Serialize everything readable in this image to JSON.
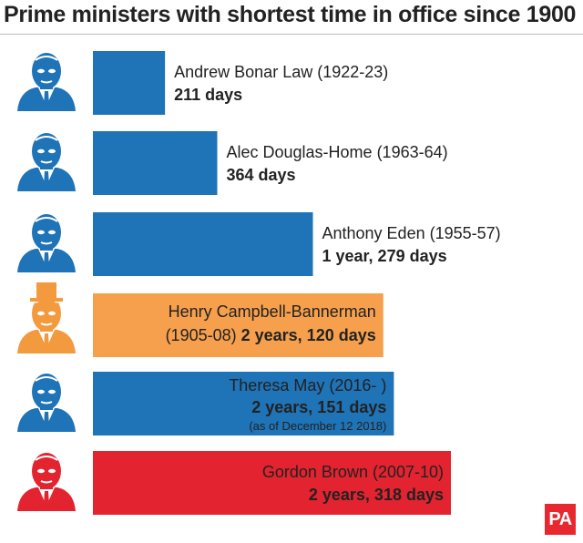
{
  "title": "Prime ministers with shortest time in office since 1900",
  "logo_text": "PA",
  "colors": {
    "blue": "#1f73b7",
    "orange": "#f6a04d",
    "red": "#e3232f",
    "portrait": "#1f73b7",
    "portrait_orange": "#f39a3f",
    "portrait_red": "#e3232f"
  },
  "chart_data": {
    "type": "bar",
    "orientation": "horizontal",
    "unit": "days",
    "categories": [
      "Andrew Bonar Law (1922-23)",
      "Alec Douglas-Home (1963-64)",
      "Anthony Eden (1955-57)",
      "Henry Campbell-Bannerman (1905-08)",
      "Theresa May (2016- )",
      "Gordon Brown (2007-10)"
    ],
    "values": [
      211,
      364,
      644,
      850,
      881,
      1048
    ],
    "bars": [
      {
        "name_line": "Andrew Bonar Law (1922-23)",
        "duration": "211 days",
        "note": "",
        "color": "#1f73b7",
        "portrait": "portrait-bonar-law-icon",
        "label_inside": false
      },
      {
        "name_line": "Alec Douglas-Home (1963-64)",
        "duration": "364 days",
        "note": "",
        "color": "#1f73b7",
        "portrait": "portrait-douglas-home-icon",
        "label_inside": false
      },
      {
        "name_line": "Anthony Eden (1955-57)",
        "duration": "1 year, 279 days",
        "note": "",
        "color": "#1f73b7",
        "portrait": "portrait-eden-icon",
        "label_inside": false
      },
      {
        "name_line": "Henry Campbell-Bannerman",
        "duration_prefix": "(1905-08)",
        "duration": "2 years, 120 days",
        "note": "",
        "color": "#f6a04d",
        "portrait": "portrait-campbell-bannerman-icon",
        "label_inside": true
      },
      {
        "name_line": "Theresa May (2016- )",
        "duration": "2 years, 151 days",
        "note": "(as of December 12 2018)",
        "color": "#1f73b7",
        "portrait": "portrait-may-icon",
        "label_inside": true
      },
      {
        "name_line": "Gordon Brown (2007-10)",
        "duration": "2 years, 318 days",
        "note": "",
        "color": "#e3232f",
        "portrait": "portrait-brown-icon",
        "label_inside": true
      }
    ]
  }
}
